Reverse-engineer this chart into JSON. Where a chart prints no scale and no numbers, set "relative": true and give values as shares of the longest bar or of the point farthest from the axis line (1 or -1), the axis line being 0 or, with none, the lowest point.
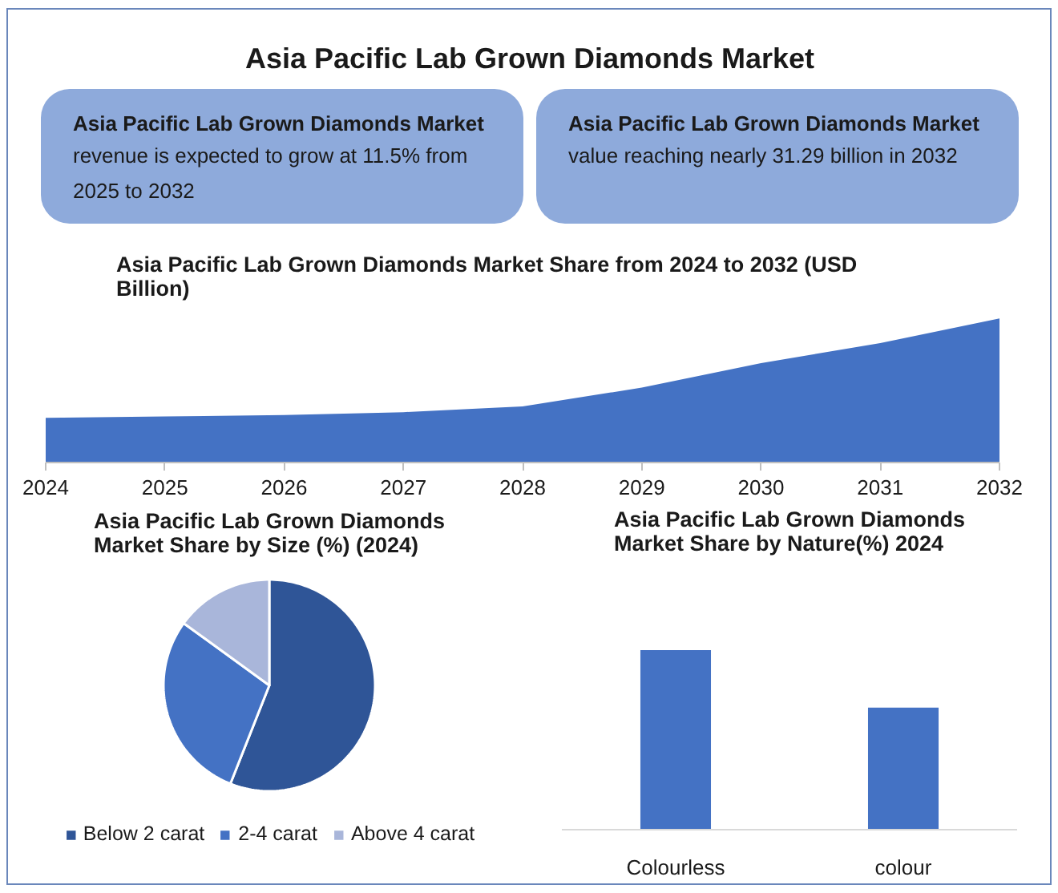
{
  "chart_data": [
    {
      "type": "other",
      "title": "Asia Pacific Lab Grown Diamonds Market",
      "annotations": [
        "Asia Pacific Lab Grown Diamonds Market",
        "revenue is expected to grow at 11.5% from 2025 to 2032",
        "Asia Pacific Lab Grown Diamonds Market",
        "value reaching nearly 31.29 billion in 2032"
      ]
    },
    {
      "type": "area",
      "title": "Asia Pacific Lab Grown Diamonds Market Share from 2024 to 2032 (USD Billion)",
      "x": [
        2024,
        2025,
        2026,
        2027,
        2028,
        2029,
        2030,
        2031,
        2032
      ],
      "values": [
        0.31,
        0.32,
        0.33,
        0.35,
        0.39,
        0.52,
        0.69,
        0.83,
        1
      ],
      "relative": true,
      "color": "#4472c4",
      "xlim": [
        2024,
        2032
      ],
      "xticks": [
        2024,
        2025,
        2026,
        2027,
        2028,
        2029,
        2030,
        2031,
        2032
      ],
      "tick_labels": "x"
    },
    {
      "type": "pie",
      "title": "Asia Pacific Lab Grown Diamonds Market Share by Size (%) (2024)",
      "categories": [
        "Below 2 carat",
        "2-4 carat",
        "Above 4 carat"
      ],
      "values": [
        56,
        29,
        15
      ],
      "colors": [
        "#2f5597",
        "#4472c4",
        "#a9b6da"
      ],
      "legend": "bottom"
    },
    {
      "type": "bar",
      "title": "Asia Pacific Lab Grown Diamonds Market Share by Nature(%) 2024",
      "categories": [
        "Colourless",
        "colour"
      ],
      "values": [
        1,
        0.68
      ],
      "relative": true,
      "color": "#4472c4",
      "tick_labels": "x"
    }
  ]
}
